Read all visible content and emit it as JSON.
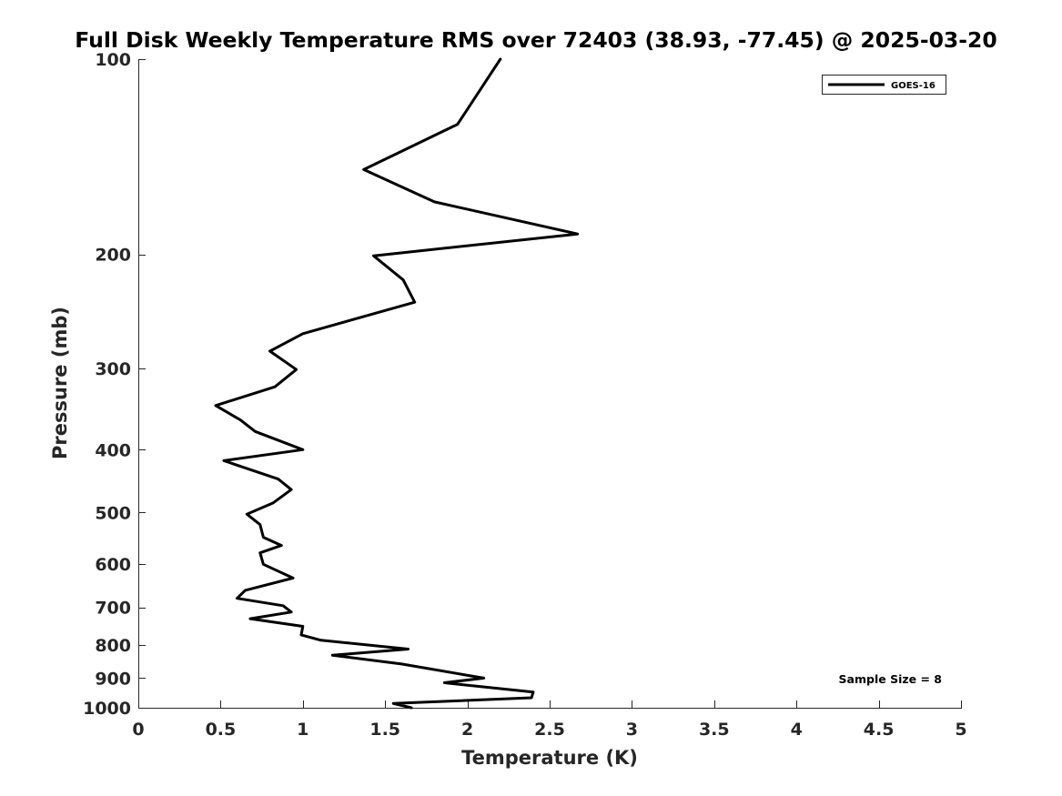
{
  "chart_data": {
    "type": "line",
    "title": "Full Disk Weekly Temperature RMS over 72403 (38.93, -77.45) @ 2025-03-20",
    "xlabel": "Temperature (K)",
    "ylabel": "Pressure (mb)",
    "xlim": [
      0,
      5
    ],
    "ylim": [
      100,
      1000
    ],
    "y_scale": "log",
    "y_direction": "reversed",
    "x_ticks": [
      "0",
      "0.5",
      "1",
      "1.5",
      "2",
      "2.5",
      "3",
      "3.5",
      "4",
      "4.5",
      "5"
    ],
    "y_ticks": [
      "100",
      "200",
      "300",
      "400",
      "500",
      "600",
      "700",
      "800",
      "900",
      "1000"
    ],
    "grid": false,
    "legend": {
      "position": "top-right",
      "entries": [
        "GOES-16"
      ]
    },
    "annotation": "Sample Size = 8",
    "series": [
      {
        "name": "GOES-16",
        "color": "#000000",
        "points": [
          {
            "x": 2.2,
            "p": 100
          },
          {
            "x": 1.94,
            "p": 126
          },
          {
            "x": 1.37,
            "p": 148
          },
          {
            "x": 1.8,
            "p": 166
          },
          {
            "x": 2.67,
            "p": 186
          },
          {
            "x": 1.43,
            "p": 201
          },
          {
            "x": 1.61,
            "p": 219
          },
          {
            "x": 1.68,
            "p": 237
          },
          {
            "x": 1.0,
            "p": 265
          },
          {
            "x": 0.8,
            "p": 282
          },
          {
            "x": 0.96,
            "p": 301
          },
          {
            "x": 0.83,
            "p": 320
          },
          {
            "x": 0.47,
            "p": 342
          },
          {
            "x": 0.62,
            "p": 360
          },
          {
            "x": 0.71,
            "p": 375
          },
          {
            "x": 1.0,
            "p": 400
          },
          {
            "x": 0.52,
            "p": 416
          },
          {
            "x": 0.85,
            "p": 444
          },
          {
            "x": 0.93,
            "p": 461
          },
          {
            "x": 0.82,
            "p": 483
          },
          {
            "x": 0.66,
            "p": 503
          },
          {
            "x": 0.74,
            "p": 522
          },
          {
            "x": 0.76,
            "p": 546
          },
          {
            "x": 0.87,
            "p": 562
          },
          {
            "x": 0.74,
            "p": 577
          },
          {
            "x": 0.76,
            "p": 601
          },
          {
            "x": 0.94,
            "p": 631
          },
          {
            "x": 0.65,
            "p": 659
          },
          {
            "x": 0.6,
            "p": 678
          },
          {
            "x": 0.88,
            "p": 696
          },
          {
            "x": 0.93,
            "p": 712
          },
          {
            "x": 0.68,
            "p": 729
          },
          {
            "x": 1.0,
            "p": 749
          },
          {
            "x": 0.99,
            "p": 772
          },
          {
            "x": 1.11,
            "p": 787
          },
          {
            "x": 1.64,
            "p": 812
          },
          {
            "x": 1.18,
            "p": 830
          },
          {
            "x": 1.6,
            "p": 856
          },
          {
            "x": 2.1,
            "p": 900
          },
          {
            "x": 1.86,
            "p": 915
          },
          {
            "x": 2.4,
            "p": 946
          },
          {
            "x": 2.39,
            "p": 965
          },
          {
            "x": 1.55,
            "p": 985
          },
          {
            "x": 1.66,
            "p": 1000
          }
        ]
      }
    ]
  }
}
